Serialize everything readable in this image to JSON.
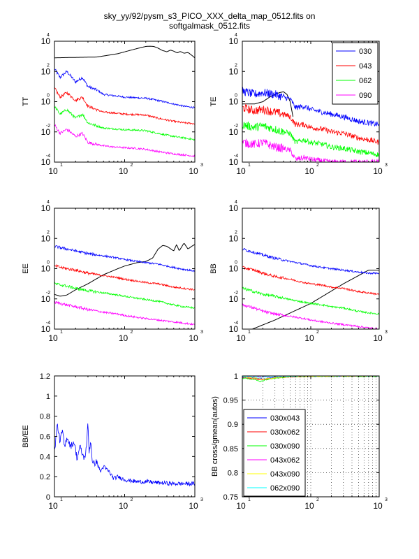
{
  "figure": {
    "title_line1": "sky_yy/92/pysm_s3_PICO_XXX_delta_map_0512.fits on",
    "title_line2": "softgalmask_0512.fits"
  },
  "colors": {
    "030": "#0000ff",
    "043": "#ff0000",
    "062": "#00ff00",
    "090": "#ff00ff",
    "theory": "#000000",
    "030x043": "#0000ff",
    "030x062": "#ff0000",
    "030x090": "#00ff00",
    "043x062": "#ff00ff",
    "043x090": "#ffff00",
    "062x090": "#00ffff"
  },
  "chart_data": [
    {
      "id": "TT",
      "type": "line",
      "ylabel": "TT",
      "xscale": "log",
      "yscale": "log",
      "xlim": [
        10,
        1000
      ],
      "ylim": [
        0.0001,
        10000
      ],
      "xticks": [
        10,
        100,
        1000
      ],
      "yticks": [
        0.0001,
        0.01,
        1,
        100,
        10000
      ],
      "series": [
        {
          "name": "theory",
          "x": [
            10,
            20,
            40,
            80,
            120,
            170,
            200,
            230,
            260,
            300,
            340,
            400,
            450,
            500,
            560,
            620,
            700,
            800,
            900,
            1000
          ],
          "y": [
            800,
            850,
            900,
            1500,
            2500,
            3800,
            4500,
            4700,
            4500,
            3500,
            2500,
            2000,
            2600,
            2200,
            1700,
            2100,
            1600,
            1800,
            1200,
            800
          ]
        },
        {
          "name": "030",
          "x": [
            10,
            12,
            15,
            20,
            25,
            30,
            40,
            50,
            70,
            100,
            150,
            200,
            300,
            500,
            700,
            1000
          ],
          "y": [
            150,
            40,
            100,
            20,
            40,
            10,
            6,
            3,
            2.5,
            2,
            1.8,
            1.7,
            1.2,
            0.7,
            0.5,
            0.4
          ]
        },
        {
          "name": "043",
          "x": [
            10,
            12,
            15,
            20,
            25,
            30,
            40,
            50,
            70,
            100,
            150,
            200,
            300,
            500,
            700,
            1000
          ],
          "y": [
            8,
            2,
            4,
            1.2,
            2,
            0.5,
            0.3,
            0.2,
            0.18,
            0.15,
            0.14,
            0.13,
            0.08,
            0.05,
            0.04,
            0.035
          ]
        },
        {
          "name": "062",
          "x": [
            10,
            12,
            15,
            20,
            25,
            30,
            40,
            50,
            70,
            100,
            150,
            200,
            300,
            500,
            700,
            1000
          ],
          "y": [
            0.5,
            0.15,
            0.3,
            0.08,
            0.15,
            0.04,
            0.025,
            0.018,
            0.016,
            0.014,
            0.013,
            0.012,
            0.008,
            0.005,
            0.004,
            0.003
          ]
        },
        {
          "name": "090",
          "x": [
            10,
            12,
            15,
            20,
            25,
            30,
            40,
            50,
            70,
            100,
            150,
            200,
            300,
            500,
            700,
            1000
          ],
          "y": [
            0.03,
            0.008,
            0.015,
            0.005,
            0.008,
            0.002,
            0.0015,
            0.0012,
            0.001,
            0.0009,
            0.0008,
            0.0007,
            0.0005,
            0.00035,
            0.0003,
            0.00025
          ]
        }
      ]
    },
    {
      "id": "TE",
      "type": "line",
      "ylabel": "TE",
      "xscale": "log",
      "yscale": "log",
      "xlim": [
        10,
        1000
      ],
      "ylim": [
        0.0001,
        10000
      ],
      "xticks": [
        10,
        100,
        1000
      ],
      "yticks": [
        0.0001,
        0.01,
        1,
        100,
        10000
      ],
      "legend": {
        "entries": [
          "030",
          "043",
          "062",
          "090"
        ],
        "position": "top-right"
      },
      "series": [
        {
          "name": "theory",
          "x": [
            10,
            15,
            20,
            25,
            30,
            35,
            40,
            45,
            50,
            55
          ],
          "y": [
            0.7,
            0.7,
            1,
            2,
            3,
            4,
            4.5,
            3,
            1,
            0.1
          ]
        },
        {
          "name": "030",
          "x": [
            10,
            15,
            20,
            30,
            40,
            50,
            60,
            80,
            100,
            150,
            200,
            300,
            500,
            700,
            1000
          ],
          "y": [
            5,
            3,
            4,
            3,
            2,
            1.5,
            0.4,
            0.5,
            0.3,
            0.2,
            0.15,
            0.1,
            0.05,
            0.04,
            0.03
          ]
        },
        {
          "name": "043",
          "x": [
            10,
            15,
            20,
            30,
            40,
            50,
            60,
            80,
            100,
            150,
            200,
            300,
            500,
            700,
            1000
          ],
          "y": [
            0.4,
            0.25,
            0.3,
            0.2,
            0.15,
            0.1,
            0.03,
            0.03,
            0.02,
            0.015,
            0.01,
            0.008,
            0.004,
            0.003,
            0.002
          ]
        },
        {
          "name": "062",
          "x": [
            10,
            15,
            20,
            30,
            40,
            50,
            60,
            80,
            100,
            150,
            200,
            300,
            500,
            700,
            1000
          ],
          "y": [
            0.03,
            0.02,
            0.025,
            0.015,
            0.01,
            0.008,
            0.002,
            0.003,
            0.002,
            0.0015,
            0.001,
            0.0008,
            0.0005,
            0.0004,
            0.0003
          ]
        },
        {
          "name": "090",
          "x": [
            10,
            15,
            20,
            30,
            40,
            50,
            60,
            80,
            100,
            150,
            200,
            300,
            500,
            700,
            1000
          ],
          "y": [
            0.002,
            0.0015,
            0.002,
            0.001,
            0.0008,
            0.0006,
            0.00015,
            0.0002,
            0.00015,
            0.00012,
            0.0001,
            0.0001,
            0.0001,
            0.0001,
            0.0001
          ]
        }
      ]
    },
    {
      "id": "EE",
      "type": "line",
      "ylabel": "EE",
      "xscale": "log",
      "yscale": "log",
      "xlim": [
        10,
        1000
      ],
      "ylim": [
        0.0001,
        10000
      ],
      "xticks": [
        10,
        100,
        1000
      ],
      "yticks": [
        0.0001,
        0.01,
        1,
        100,
        10000
      ],
      "series": [
        {
          "name": "theory",
          "x": [
            10,
            12,
            15,
            20,
            30,
            50,
            80,
            100,
            150,
            200,
            250,
            300,
            350,
            400,
            500,
            550,
            600,
            700,
            800,
            900,
            1000
          ],
          "y": [
            0.02,
            0.015,
            0.018,
            0.04,
            0.1,
            0.4,
            1,
            1.5,
            2.5,
            3,
            5,
            20,
            35,
            30,
            15,
            40,
            15,
            50,
            20,
            30,
            40
          ]
        },
        {
          "name": "030",
          "x": [
            10,
            15,
            20,
            30,
            50,
            80,
            100,
            150,
            200,
            300,
            500,
            700,
            1000
          ],
          "y": [
            30,
            20,
            15,
            10,
            7,
            5,
            4,
            3,
            2.5,
            2,
            1.2,
            0.9,
            0.7
          ]
        },
        {
          "name": "043",
          "x": [
            10,
            15,
            20,
            30,
            50,
            80,
            100,
            150,
            200,
            300,
            500,
            700,
            1000
          ],
          "y": [
            1.5,
            1,
            0.8,
            0.5,
            0.35,
            0.25,
            0.2,
            0.15,
            0.12,
            0.1,
            0.06,
            0.05,
            0.04
          ]
        },
        {
          "name": "062",
          "x": [
            10,
            15,
            20,
            30,
            50,
            80,
            100,
            150,
            200,
            300,
            500,
            700,
            1000
          ],
          "y": [
            0.1,
            0.07,
            0.05,
            0.035,
            0.025,
            0.018,
            0.015,
            0.011,
            0.009,
            0.007,
            0.004,
            0.003,
            0.0025
          ]
        },
        {
          "name": "090",
          "x": [
            10,
            15,
            20,
            30,
            50,
            80,
            100,
            150,
            200,
            300,
            500,
            700,
            1000
          ],
          "y": [
            0.006,
            0.004,
            0.003,
            0.002,
            0.0013,
            0.001,
            0.0008,
            0.0006,
            0.0005,
            0.0004,
            0.0003,
            0.00025,
            0.0002
          ]
        }
      ]
    },
    {
      "id": "BB",
      "type": "line",
      "ylabel": "BB",
      "xscale": "log",
      "yscale": "log",
      "xlim": [
        10,
        1000
      ],
      "ylim": [
        0.0001,
        10000
      ],
      "xticks": [
        10,
        100,
        1000
      ],
      "yticks": [
        0.0001,
        0.01,
        1,
        100,
        10000
      ],
      "series": [
        {
          "name": "theory",
          "x": [
            14,
            30,
            100,
            300,
            700,
            1000
          ],
          "y": [
            0.0001,
            0.0004,
            0.005,
            0.1,
            0.8,
            0.8
          ]
        },
        {
          "name": "030",
          "x": [
            10,
            15,
            20,
            30,
            50,
            80,
            100,
            150,
            200,
            300,
            500,
            700,
            1000
          ],
          "y": [
            20,
            12,
            8,
            5,
            3,
            2,
            1.6,
            1.2,
            1,
            0.8,
            0.6,
            0.5,
            0.5
          ]
        },
        {
          "name": "043",
          "x": [
            10,
            15,
            20,
            30,
            50,
            80,
            100,
            150,
            200,
            300,
            500,
            700,
            1000
          ],
          "y": [
            1.2,
            0.8,
            0.5,
            0.3,
            0.2,
            0.12,
            0.1,
            0.08,
            0.06,
            0.05,
            0.03,
            0.025,
            0.02
          ]
        },
        {
          "name": "062",
          "x": [
            10,
            15,
            20,
            30,
            50,
            80,
            100,
            150,
            200,
            300,
            500,
            700,
            1000
          ],
          "y": [
            0.05,
            0.03,
            0.02,
            0.015,
            0.009,
            0.006,
            0.005,
            0.004,
            0.003,
            0.0025,
            0.0015,
            0.0012,
            0.001
          ]
        },
        {
          "name": "090",
          "x": [
            10,
            15,
            20,
            30,
            50,
            80,
            100,
            150,
            200,
            300,
            500,
            700,
            1000
          ],
          "y": [
            0.004,
            0.0025,
            0.0015,
            0.001,
            0.0007,
            0.0005,
            0.0004,
            0.0003,
            0.00025,
            0.0002,
            0.00015,
            0.00012,
            0.0001
          ]
        }
      ]
    },
    {
      "id": "BBEE",
      "type": "line",
      "ylabel": "BB/EE",
      "xscale": "log",
      "yscale": "linear",
      "xlim": [
        10,
        1000
      ],
      "ylim": [
        0,
        1.2
      ],
      "xticks": [
        10,
        100,
        1000
      ],
      "yticks": [
        0,
        0.2,
        0.4,
        0.6,
        0.8,
        1,
        1.2
      ],
      "ytick_labels": [
        "0",
        "0.2",
        "0.4",
        "0.6",
        "0.8",
        "1",
        "1.2"
      ],
      "series": [
        {
          "name": "030",
          "x": [
            10,
            11,
            12,
            13,
            14,
            15,
            17,
            19,
            21,
            23,
            25,
            27,
            29,
            30,
            31,
            33,
            35,
            40,
            45,
            50,
            60,
            70,
            80,
            100,
            150,
            200,
            300,
            500,
            700,
            1000
          ],
          "y": [
            0.45,
            0.72,
            0.55,
            0.66,
            0.48,
            0.6,
            0.5,
            0.55,
            0.38,
            0.5,
            0.42,
            0.38,
            0.55,
            0.75,
            0.45,
            0.55,
            0.32,
            0.35,
            0.25,
            0.3,
            0.25,
            0.18,
            0.2,
            0.17,
            0.15,
            0.15,
            0.14,
            0.13,
            0.13,
            0.13
          ]
        }
      ]
    },
    {
      "id": "BBcross",
      "type": "line",
      "ylabel": "BB cross/gmean(autos)",
      "xscale": "log",
      "yscale": "linear",
      "xlim": [
        10,
        1000
      ],
      "ylim": [
        0.75,
        1.0
      ],
      "xticks": [
        10,
        100,
        1000
      ],
      "yticks": [
        0.75,
        0.8,
        0.85,
        0.9,
        0.95,
        1
      ],
      "ytick_labels": [
        "0.75",
        "0.8",
        "0.85",
        "0.9",
        "0.95",
        "1"
      ],
      "grid": "dotted",
      "legend": {
        "entries": [
          "030x043",
          "030x062",
          "030x090",
          "043x062",
          "043x090",
          "062x090"
        ],
        "position": "lower-left"
      },
      "series": [
        {
          "name": "030x043",
          "x": [
            10,
            15,
            20,
            30,
            50,
            100,
            1000
          ],
          "y": [
            0.997,
            0.996,
            0.994,
            0.997,
            0.998,
            0.999,
            1.0
          ]
        },
        {
          "name": "030x062",
          "x": [
            10,
            15,
            20,
            30,
            50,
            100,
            1000
          ],
          "y": [
            0.996,
            0.994,
            0.992,
            0.996,
            0.998,
            0.999,
            1.0
          ]
        },
        {
          "name": "030x090",
          "x": [
            10,
            15,
            18,
            22,
            30,
            50,
            100,
            1000
          ],
          "y": [
            0.995,
            0.993,
            0.988,
            0.992,
            0.995,
            0.998,
            0.999,
            0.999
          ]
        },
        {
          "name": "043x062",
          "x": [
            10,
            20,
            50,
            100,
            1000
          ],
          "y": [
            0.999,
            0.998,
            0.999,
            1.0,
            1.0
          ]
        },
        {
          "name": "043x090",
          "x": [
            10,
            15,
            20,
            30,
            50,
            100,
            1000
          ],
          "y": [
            0.998,
            0.996,
            0.993,
            0.996,
            0.998,
            0.999,
            1.0
          ]
        },
        {
          "name": "062x090",
          "x": [
            10,
            20,
            50,
            100,
            1000
          ],
          "y": [
            0.999,
            0.998,
            0.999,
            1.0,
            1.0
          ]
        }
      ]
    }
  ]
}
